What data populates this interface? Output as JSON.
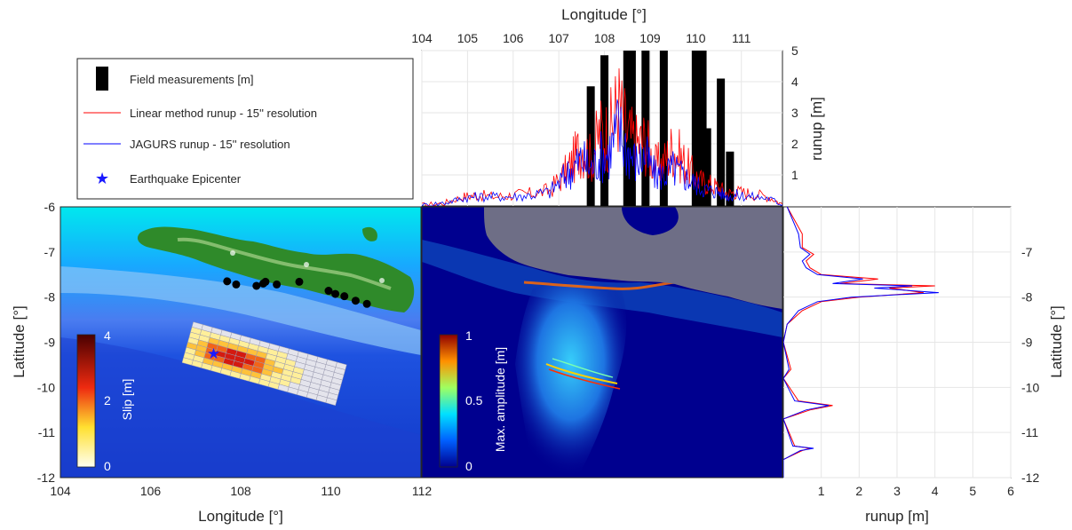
{
  "legend": {
    "field": "Field measurements [m]",
    "linear": "Linear method runup - 15'' resolution",
    "jagurs": "JAGURS runup - 15'' resolution",
    "epicenter": "Earthquake Epicenter"
  },
  "colors": {
    "field": "#000000",
    "linear": "#ff0000",
    "jagurs": "#0000ff",
    "epicenter": "#1a1aff",
    "land": "#6e6e86",
    "ocean_deep": "#00008f"
  },
  "top_panel": {
    "xlabel": "Longitude [°]",
    "ylabel": "runup [m]",
    "xticks": [
      "104",
      "105",
      "106",
      "107",
      "108",
      "109",
      "110",
      "111"
    ],
    "yticks": [
      "1",
      "2",
      "3",
      "4",
      "5"
    ]
  },
  "map_left": {
    "xlabel": "Longitude [°]",
    "ylabel": "Latitude [°]",
    "xticks": [
      "104",
      "106",
      "108",
      "110",
      "112"
    ],
    "yticks": [
      "-6",
      "-7",
      "-8",
      "-9",
      "-10",
      "-11",
      "-12"
    ],
    "colorbar_label": "Slip [m]",
    "colorbar_ticks": [
      "4",
      "2",
      "0"
    ]
  },
  "map_mid": {
    "colorbar_label": "Max. amplitude [m]",
    "colorbar_ticks": [
      "1",
      "0.5",
      "0"
    ]
  },
  "right_panel": {
    "xlabel": "runup [m]",
    "ylabel": "Latitude [°]",
    "xticks": [
      "1",
      "2",
      "3",
      "4",
      "5",
      "6"
    ],
    "yticks": [
      "-7",
      "-8",
      "-9",
      "-10",
      "-11",
      "-12"
    ]
  },
  "chart_data": [
    {
      "type": "bar",
      "name": "field_measurements_by_longitude",
      "x": [
        107.7,
        108.0,
        108.5,
        108.6,
        108.9,
        109.3,
        110.0,
        110.15,
        110.25,
        110.55,
        110.75
      ],
      "values": [
        3.85,
        4.85,
        5.0,
        5.0,
        5.0,
        5.0,
        5.0,
        5.0,
        2.5,
        4.1,
        1.75
      ],
      "xlim": [
        104,
        111.9
      ],
      "ylim": [
        0,
        5
      ],
      "xlabel": "Longitude [°]",
      "ylabel": "runup [m]",
      "grid": true
    },
    {
      "type": "line",
      "name": "runup_profile_by_longitude",
      "x": [
        104.0,
        104.5,
        104.9,
        105.2,
        105.6,
        106.0,
        106.4,
        106.8,
        107.1,
        107.3,
        107.5,
        107.7,
        107.9,
        108.1,
        108.3,
        108.5,
        108.7,
        108.9,
        109.1,
        109.3,
        109.5,
        109.7,
        109.9,
        110.1,
        110.3,
        110.5,
        110.7,
        110.9,
        111.2,
        111.6,
        111.9
      ],
      "series": [
        {
          "name": "Linear method runup - 15'' resolution",
          "values": [
            0.0,
            0.1,
            0.3,
            0.35,
            0.3,
            0.35,
            0.4,
            0.5,
            1.0,
            1.4,
            2.0,
            1.5,
            2.4,
            2.3,
            3.3,
            2.3,
            2.0,
            2.1,
            1.3,
            1.4,
            1.9,
            1.5,
            1.1,
            0.8,
            0.7,
            0.6,
            0.4,
            0.45,
            0.4,
            0.3,
            0.05
          ]
        },
        {
          "name": "JAGURS runup - 15'' resolution",
          "values": [
            0.0,
            0.1,
            0.25,
            0.3,
            0.3,
            0.3,
            0.35,
            0.45,
            0.9,
            1.2,
            1.5,
            1.2,
            1.6,
            1.7,
            2.5,
            1.8,
            1.4,
            1.6,
            1.0,
            1.0,
            1.2,
            1.0,
            0.8,
            0.6,
            0.5,
            0.45,
            0.3,
            0.35,
            0.3,
            0.25,
            0.05
          ]
        }
      ],
      "xlim": [
        104,
        111.9
      ],
      "ylim": [
        0,
        5
      ],
      "grid": true
    },
    {
      "type": "line",
      "name": "runup_profile_by_latitude",
      "y": [
        -6.0,
        -6.3,
        -6.6,
        -6.9,
        -7.05,
        -7.2,
        -7.35,
        -7.5,
        -7.6,
        -7.7,
        -7.75,
        -7.8,
        -7.9,
        -8.0,
        -8.1,
        -8.3,
        -8.6,
        -9.0,
        -9.6,
        -9.8,
        -10.3,
        -10.4,
        -10.5,
        -10.7,
        -11.3,
        -11.35,
        -11.4,
        -11.6,
        -12.0
      ],
      "series": [
        {
          "name": "Linear method runup - 15'' resolution",
          "values": [
            0.1,
            0.3,
            0.5,
            0.5,
            0.8,
            0.6,
            0.7,
            1.0,
            2.5,
            1.5,
            4.0,
            2.8,
            3.7,
            2.0,
            1.0,
            0.5,
            0.1,
            0.0,
            0.2,
            0.0,
            0.4,
            1.3,
            0.7,
            0.0,
            0.3,
            0.7,
            0.5,
            0.0,
            0.0
          ]
        },
        {
          "name": "JAGURS runup - 15'' resolution",
          "values": [
            0.1,
            0.25,
            0.4,
            0.45,
            0.7,
            0.5,
            0.6,
            0.9,
            2.1,
            1.3,
            3.4,
            2.4,
            4.1,
            1.8,
            0.9,
            0.4,
            0.1,
            0.0,
            0.15,
            0.0,
            0.3,
            1.2,
            0.6,
            0.0,
            0.25,
            0.8,
            0.45,
            0.0,
            0.0
          ]
        }
      ],
      "xlim": [
        0,
        6
      ],
      "ylim": [
        -12,
        -6
      ],
      "xlabel": "runup [m]",
      "ylabel": "Latitude [°]",
      "grid": true
    },
    {
      "type": "scatter",
      "name": "field_measurement_locations",
      "x": [
        107.7,
        107.9,
        108.35,
        108.5,
        108.55,
        108.8,
        109.3,
        109.95,
        110.1,
        110.3,
        110.55,
        110.8
      ],
      "y": [
        -7.65,
        -7.72,
        -7.75,
        -7.7,
        -7.66,
        -7.72,
        -7.66,
        -7.86,
        -7.93,
        -7.98,
        -8.08,
        -8.15
      ]
    },
    {
      "type": "scatter",
      "name": "earthquake_epicenter",
      "x": [
        107.4
      ],
      "y": [
        -9.25
      ]
    }
  ]
}
